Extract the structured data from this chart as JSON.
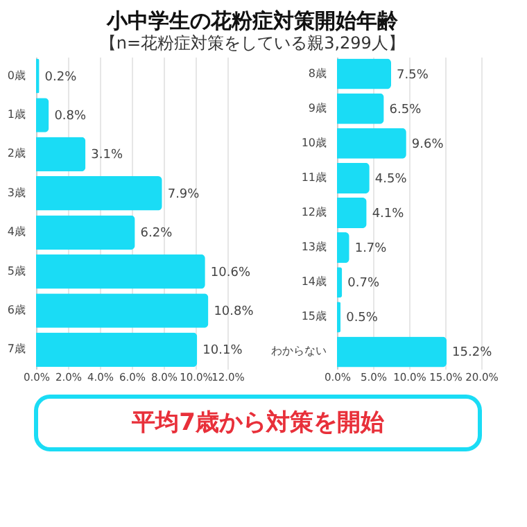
{
  "chart_data": [
    {
      "type": "bar",
      "orientation": "horizontal",
      "title": "小中学生の花粉症対策開始年齢",
      "subtitle": "【n=花粉症対策をしている親3,299人】",
      "categories": [
        "0歳",
        "1歳",
        "2歳",
        "3歳",
        "4歳",
        "5歳",
        "6歳",
        "7歳"
      ],
      "values": [
        0.2,
        0.8,
        3.1,
        7.9,
        6.2,
        10.6,
        10.8,
        10.1
      ],
      "value_labels": [
        "0.2%",
        "0.8%",
        "3.1%",
        "7.9%",
        "6.2%",
        "10.6%",
        "10.8%",
        "10.1%"
      ],
      "color": "#1adcf5",
      "xlim": [
        0,
        12
      ],
      "xticks": [
        {
          "value": 0,
          "label": "0.0%"
        },
        {
          "value": 2,
          "label": "2.0%"
        },
        {
          "value": 4,
          "label": "4.0%"
        },
        {
          "value": 6,
          "label": "6.0%"
        },
        {
          "value": 8,
          "label": "8.0%"
        },
        {
          "value": 10,
          "label": "10.0%"
        },
        {
          "value": 12,
          "label": "12.0%"
        }
      ],
      "grid": "x"
    },
    {
      "type": "bar",
      "orientation": "horizontal",
      "categories": [
        "8歳",
        "9歳",
        "10歳",
        "11歳",
        "12歳",
        "13歳",
        "14歳",
        "15歳",
        "わからない"
      ],
      "values": [
        7.5,
        6.5,
        9.6,
        4.5,
        4.1,
        1.7,
        0.7,
        0.5,
        15.2
      ],
      "value_labels": [
        "7.5%",
        "6.5%",
        "9.6%",
        "4.5%",
        "4.1%",
        "1.7%",
        "0.7%",
        "0.5%",
        "15.2%"
      ],
      "color": "#1adcf5",
      "xlim": [
        0,
        20
      ],
      "xticks": [
        {
          "value": 0,
          "label": "0.0%"
        },
        {
          "value": 5,
          "label": "5.0%"
        },
        {
          "value": 10,
          "label": "10.0%"
        },
        {
          "value": 15,
          "label": "15.0%"
        },
        {
          "value": 20,
          "label": "20.0%"
        }
      ],
      "grid": "x",
      "annotations": [
        "平均7歳から対策を開始"
      ]
    }
  ]
}
